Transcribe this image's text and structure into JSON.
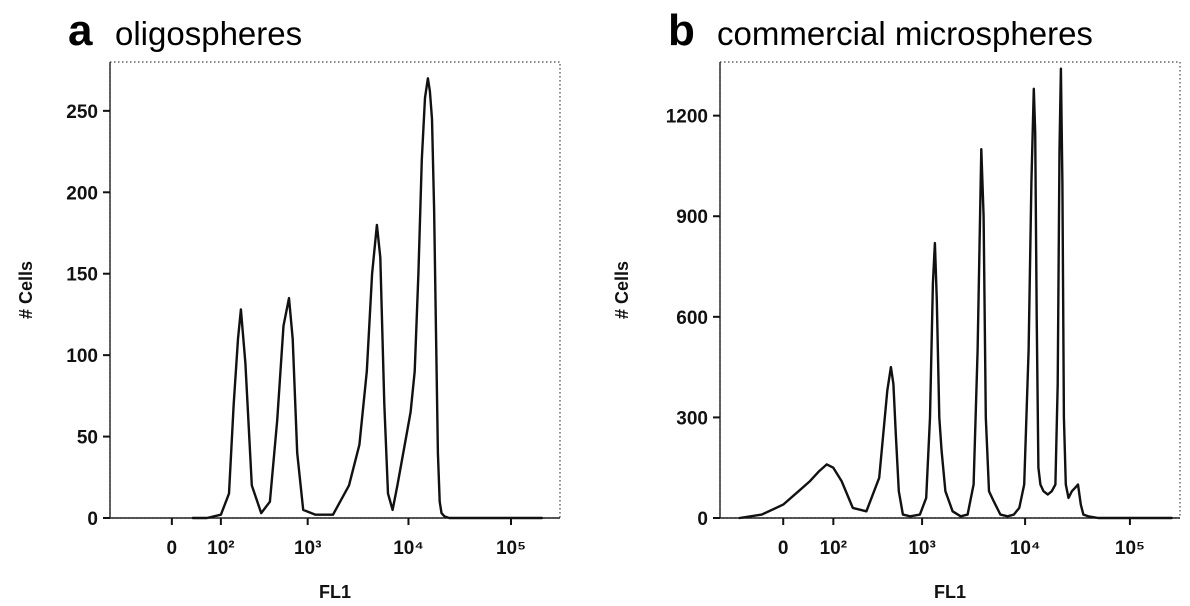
{
  "chart_data": [
    {
      "type": "line",
      "panel_letter": "a",
      "title": "oligospheres",
      "xlabel": "FL1",
      "ylabel": "# Cells",
      "x_scale": "biexponential",
      "x_tick_labels": [
        "0",
        "10²",
        "10³",
        "10⁴",
        "10⁵"
      ],
      "y_ticks": [
        0,
        50,
        100,
        150,
        200,
        250
      ],
      "ylim": [
        0,
        280
      ],
      "grid": false,
      "series": [
        {
          "x": [
            30,
            60,
            100,
            130,
            150,
            170,
            185,
            210,
            250,
            320,
            400,
            480,
            560,
            640,
            700,
            780,
            900,
            1200,
            1800,
            2600,
            3300,
            3900,
            4400,
            4900,
            5300,
            5800,
            6300,
            7000,
            7800,
            8600,
            9500,
            10500,
            11500,
            12500,
            13500,
            14500,
            15500,
            16200,
            17000,
            17800,
            18600,
            19400,
            20200,
            21000,
            22500,
            25000,
            30000,
            40000,
            60000,
            100000,
            200000
          ],
          "y": [
            0,
            0,
            2,
            15,
            70,
            110,
            128,
            95,
            20,
            3,
            10,
            60,
            118,
            135,
            110,
            40,
            5,
            2,
            2,
            20,
            45,
            90,
            150,
            180,
            160,
            70,
            15,
            5,
            20,
            35,
            50,
            65,
            90,
            150,
            220,
            258,
            270,
            262,
            245,
            190,
            110,
            40,
            10,
            3,
            1,
            0,
            0,
            0,
            0,
            0,
            0
          ]
        }
      ]
    },
    {
      "type": "line",
      "panel_letter": "b",
      "title": "commercial microspheres",
      "xlabel": "FL1",
      "ylabel": "# Cells",
      "x_scale": "biexponential",
      "x_tick_labels": [
        "0",
        "10²",
        "10³",
        "10⁴",
        "10⁵"
      ],
      "y_ticks": [
        0,
        300,
        600,
        900,
        1200
      ],
      "ylim": [
        0,
        1360
      ],
      "grid": false,
      "series": [
        {
          "x": [
            -80,
            -30,
            0,
            20,
            40,
            60,
            80,
            100,
            130,
            180,
            260,
            360,
            440,
            480,
            510,
            540,
            580,
            640,
            760,
            950,
            1100,
            1200,
            1280,
            1340,
            1400,
            1480,
            1560,
            1700,
            2000,
            2400,
            2800,
            3200,
            3500,
            3800,
            4000,
            4200,
            4500,
            5000,
            5800,
            6800,
            7800,
            8800,
            9800,
            10800,
            11500,
            12100,
            12500,
            12900,
            13400,
            14000,
            15000,
            16500,
            18000,
            19500,
            20500,
            21300,
            22000,
            22700,
            23500,
            24500,
            26000,
            28000,
            30000,
            32000,
            34000,
            36000,
            40000,
            50000,
            70000,
            120000,
            250000
          ],
          "y": [
            0,
            10,
            40,
            80,
            110,
            140,
            160,
            150,
            110,
            30,
            20,
            120,
            380,
            450,
            400,
            250,
            80,
            10,
            5,
            10,
            60,
            300,
            700,
            820,
            650,
            300,
            200,
            80,
            20,
            5,
            10,
            100,
            500,
            1100,
            900,
            300,
            80,
            50,
            10,
            5,
            10,
            30,
            100,
            500,
            1000,
            1280,
            1150,
            600,
            150,
            100,
            80,
            70,
            80,
            100,
            400,
            1100,
            1340,
            1000,
            300,
            100,
            60,
            80,
            90,
            100,
            40,
            10,
            5,
            0,
            0,
            0,
            0
          ]
        }
      ]
    }
  ]
}
